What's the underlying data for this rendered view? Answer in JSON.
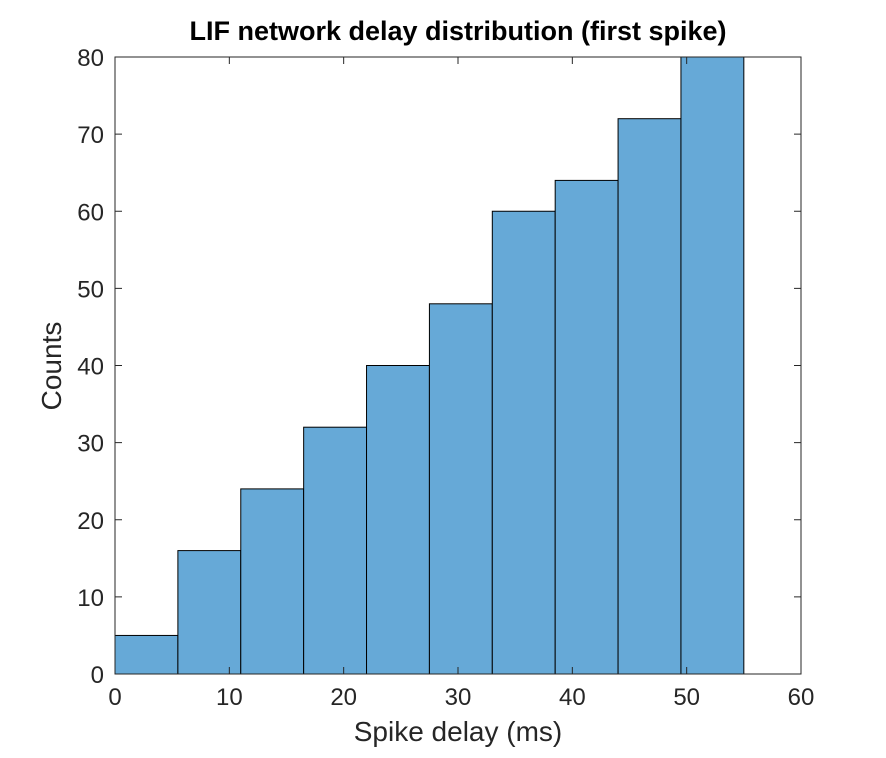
{
  "chart_data": {
    "type": "bar",
    "title": "LIF network delay distribution (first spike)",
    "xlabel": "Spike delay (ms)",
    "ylabel": "Counts",
    "xlim": [
      0,
      60
    ],
    "ylim": [
      0,
      80
    ],
    "xticks": [
      0,
      10,
      20,
      30,
      40,
      50,
      60
    ],
    "yticks": [
      0,
      10,
      20,
      30,
      40,
      50,
      60,
      70,
      80
    ],
    "bins": [
      {
        "start": 0.0,
        "end": 5.5,
        "count": 5
      },
      {
        "start": 5.5,
        "end": 11.0,
        "count": 16
      },
      {
        "start": 11.0,
        "end": 16.5,
        "count": 24
      },
      {
        "start": 16.5,
        "end": 22.0,
        "count": 32
      },
      {
        "start": 22.0,
        "end": 27.5,
        "count": 40
      },
      {
        "start": 27.5,
        "end": 33.0,
        "count": 48
      },
      {
        "start": 33.0,
        "end": 38.5,
        "count": 60
      },
      {
        "start": 38.5,
        "end": 44.0,
        "count": 64
      },
      {
        "start": 44.0,
        "end": 49.5,
        "count": 72
      },
      {
        "start": 49.5,
        "end": 55.0,
        "count": 80
      }
    ],
    "grid": false,
    "bar_color": "#66a9d7",
    "edge_color": "#000000"
  }
}
